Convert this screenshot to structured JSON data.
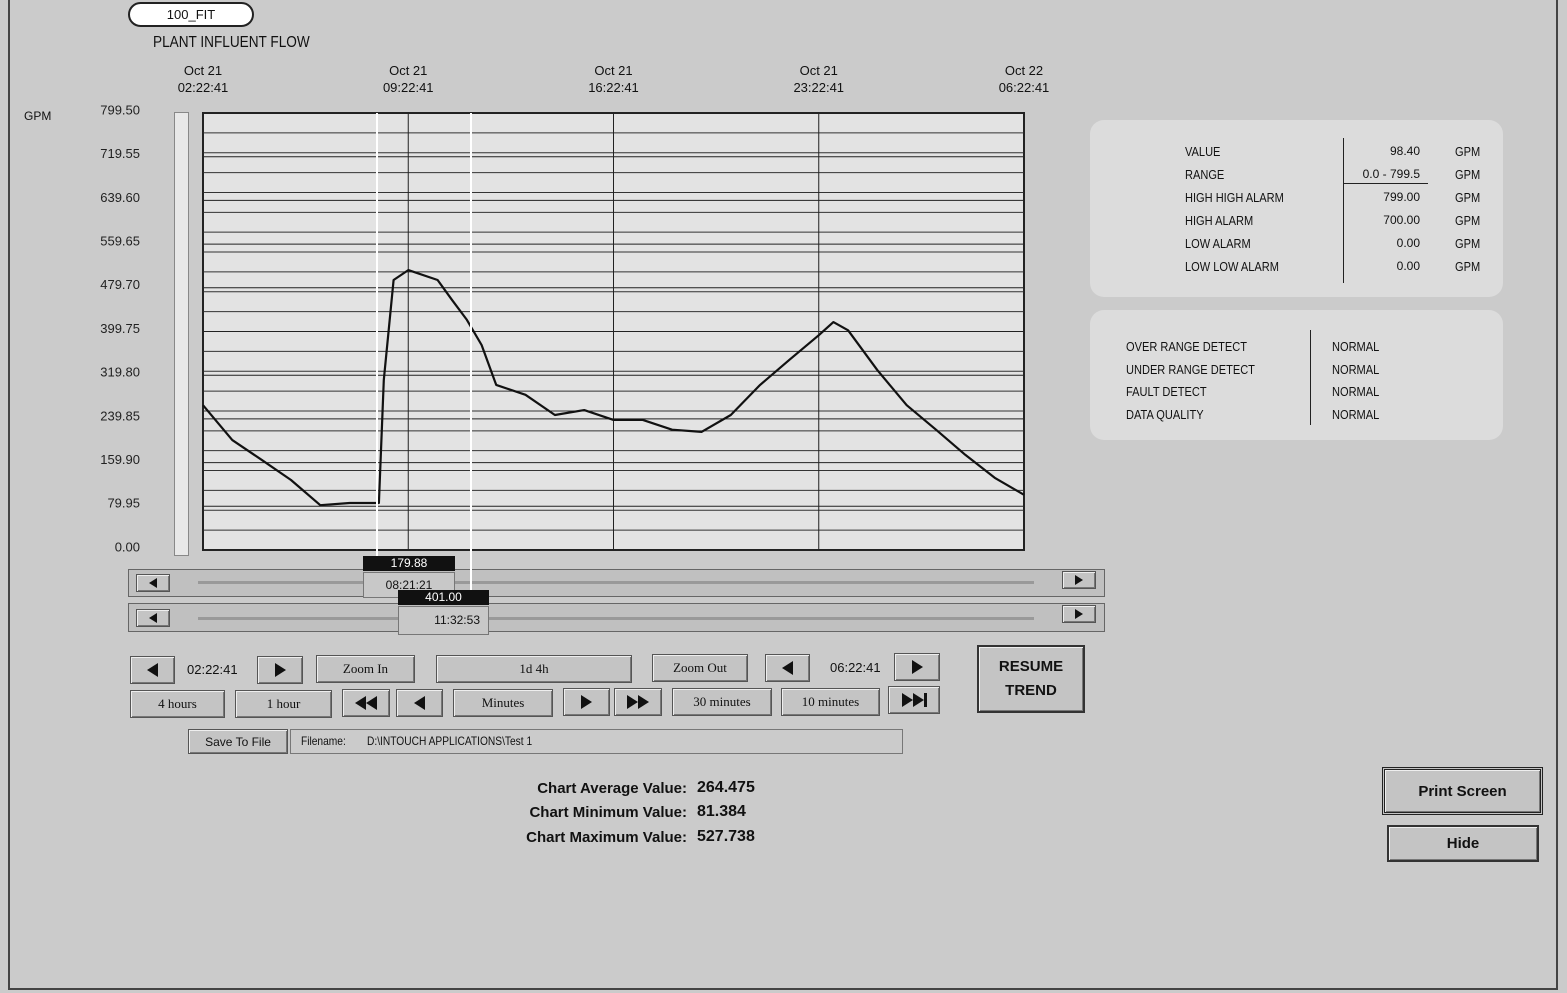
{
  "tag": "100_FIT",
  "chart_data": {
    "type": "line",
    "title": "PLANT INFLUENT FLOW",
    "y_label": "GPM",
    "color": "#111111",
    "x": [
      "Oct 21 02:22:41",
      "Oct 21 03:22:41",
      "Oct 21 04:22:41",
      "Oct 21 05:22:41",
      "Oct 21 06:22:41",
      "Oct 21 07:22:41",
      "Oct 21 08:22:41",
      "Oct 21 08:32:41",
      "Oct 21 08:52:41",
      "Oct 21 09:22:41",
      "Oct 21 10:22:41",
      "Oct 21 10:52:41",
      "Oct 21 11:22:41",
      "Oct 21 11:52:41",
      "Oct 21 12:22:41",
      "Oct 21 13:22:41",
      "Oct 21 14:22:41",
      "Oct 21 15:22:41",
      "Oct 21 16:22:41",
      "Oct 21 17:22:41",
      "Oct 21 18:22:41",
      "Oct 21 19:22:41",
      "Oct 21 20:22:41",
      "Oct 21 21:22:41",
      "Oct 21 22:22:41",
      "Oct 21 23:22:41",
      "Oct 21 23:52:41",
      "Oct 22 00:22:41",
      "Oct 22 01:22:41",
      "Oct 22 02:22:41",
      "Oct 22 03:22:41",
      "Oct 22 04:22:41",
      "Oct 22 05:22:41",
      "Oct 22 06:22:41"
    ],
    "values": [
      265,
      201,
      165,
      128,
      82,
      86,
      86,
      311,
      494,
      512,
      494,
      457,
      421,
      375,
      302,
      284,
      247,
      256,
      238,
      238,
      220,
      216,
      247,
      302,
      348,
      393,
      417,
      402,
      329,
      265,
      220,
      174,
      132,
      101
    ],
    "xlim": [
      "Oct 21 02:22:41",
      "Oct 22 06:22:41"
    ],
    "xticks": [
      "Oct 21 02:22:41",
      "Oct 21 09:22:41",
      "Oct 21 16:22:41",
      "Oct 21 23:22:41",
      "Oct 22 06:22:41"
    ],
    "ylim": [
      0,
      799.5
    ],
    "yticks": [
      {
        "value": 0,
        "label": "0.00"
      },
      79.95,
      {
        "value": 159.9,
        "label": "159.90"
      },
      239.85,
      {
        "value": 319.8,
        "label": "319.80"
      },
      399.75,
      {
        "value": 479.7,
        "label": "479.70"
      },
      559.65,
      {
        "value": 639.6,
        "label": "639.60"
      },
      719.55,
      {
        "value": 799.5,
        "label": "799.50"
      }
    ],
    "grid": true
  },
  "cursors": [
    {
      "value": "179.88",
      "time": "08:21:21"
    },
    {
      "value": "401.00",
      "time": "11:32:53"
    }
  ],
  "controls": {
    "start_time": "02:22:41",
    "zoom_in": "Zoom In",
    "span": "1d 4h",
    "zoom_out": "Zoom Out",
    "end_time": "06:22:41",
    "row2": [
      "4 hours",
      "1 hour",
      "Minutes",
      "30 minutes",
      "10 minutes"
    ],
    "resume": "RESUME TREND",
    "save": "Save To File",
    "filename_label": "Filename:",
    "filename": "D:\\INTOUCH APPLICATIONS\\Test 1"
  },
  "stats": [
    {
      "label": "Chart Average Value:",
      "value": "264.475"
    },
    {
      "label": "Chart Minimum Value:",
      "value": "81.384"
    },
    {
      "label": "Chart Maximum Value:",
      "value": "527.738"
    }
  ],
  "info_panel": [
    {
      "label": "VALUE",
      "value": "98.40",
      "unit": "GPM"
    },
    {
      "label": "RANGE",
      "value": "0.0 - 799.5",
      "unit": "GPM"
    },
    {
      "label": "HIGH HIGH ALARM",
      "value": "799.00",
      "unit": "GPM"
    },
    {
      "label": "HIGH ALARM",
      "value": "700.00",
      "unit": "GPM"
    },
    {
      "label": "LOW ALARM",
      "value": "0.00",
      "unit": "GPM"
    },
    {
      "label": "LOW LOW ALARM",
      "value": "0.00",
      "unit": "GPM"
    }
  ],
  "status_panel": [
    {
      "label": "OVER RANGE DETECT",
      "value": "NORMAL"
    },
    {
      "label": "UNDER RANGE DETECT",
      "value": "NORMAL"
    },
    {
      "label": "FAULT DETECT",
      "value": "NORMAL"
    },
    {
      "label": "DATA QUALITY",
      "value": "NORMAL"
    }
  ],
  "print_screen": "Print Screen",
  "hide": "Hide"
}
